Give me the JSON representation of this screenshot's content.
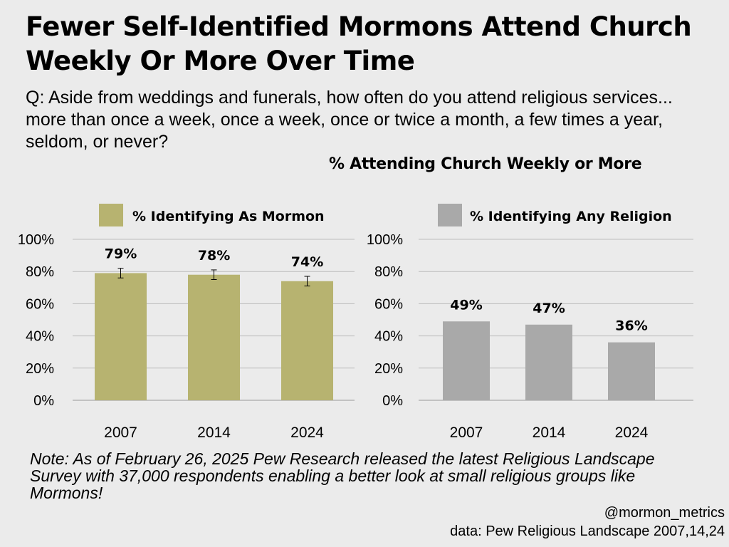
{
  "title": "Fewer Self-Identified Mormons Attend Church Weekly Or More Over Time",
  "question": "Q: Aside from weddings and funerals, how often do you attend religious services... more than once a week, once a week, once or twice a month, a few times a year, seldom, or never?",
  "subtitle": "% Attending Church Weekly or More",
  "note": "Note: As of February 26, 2025 Pew Research released the latest Religious Landscape Survey with 37,000 respondents enabling a better look at small religious groups like Mormons!",
  "handle": "@mormon_metrics",
  "source": "data: Pew Religious Landscape 2007,14,24",
  "chart_data": [
    {
      "type": "bar",
      "categories": [
        "2007",
        "2014",
        "2024"
      ],
      "series": [
        {
          "name": "% Identifying As Mormon",
          "values": [
            79,
            78,
            74
          ]
        }
      ],
      "data_labels": [
        "79%",
        "78%",
        "74%"
      ],
      "error_bars": [
        [
          76,
          82
        ],
        [
          75,
          81
        ],
        [
          71,
          77
        ]
      ],
      "yticks": [
        "0%",
        "20%",
        "40%",
        "60%",
        "80%",
        "100%"
      ],
      "ylim": [
        0,
        100
      ],
      "grid": true,
      "legend_position": "top",
      "color": "#b7b370"
    },
    {
      "type": "bar",
      "categories": [
        "2007",
        "2014",
        "2024"
      ],
      "series": [
        {
          "name": "% Identifying Any Religion",
          "values": [
            49,
            47,
            36
          ]
        }
      ],
      "data_labels": [
        "49%",
        "47%",
        "36%"
      ],
      "yticks": [
        "0%",
        "20%",
        "40%",
        "60%",
        "80%",
        "100%"
      ],
      "ylim": [
        0,
        100
      ],
      "grid": true,
      "legend_position": "top",
      "color": "#a9a9a9"
    }
  ]
}
